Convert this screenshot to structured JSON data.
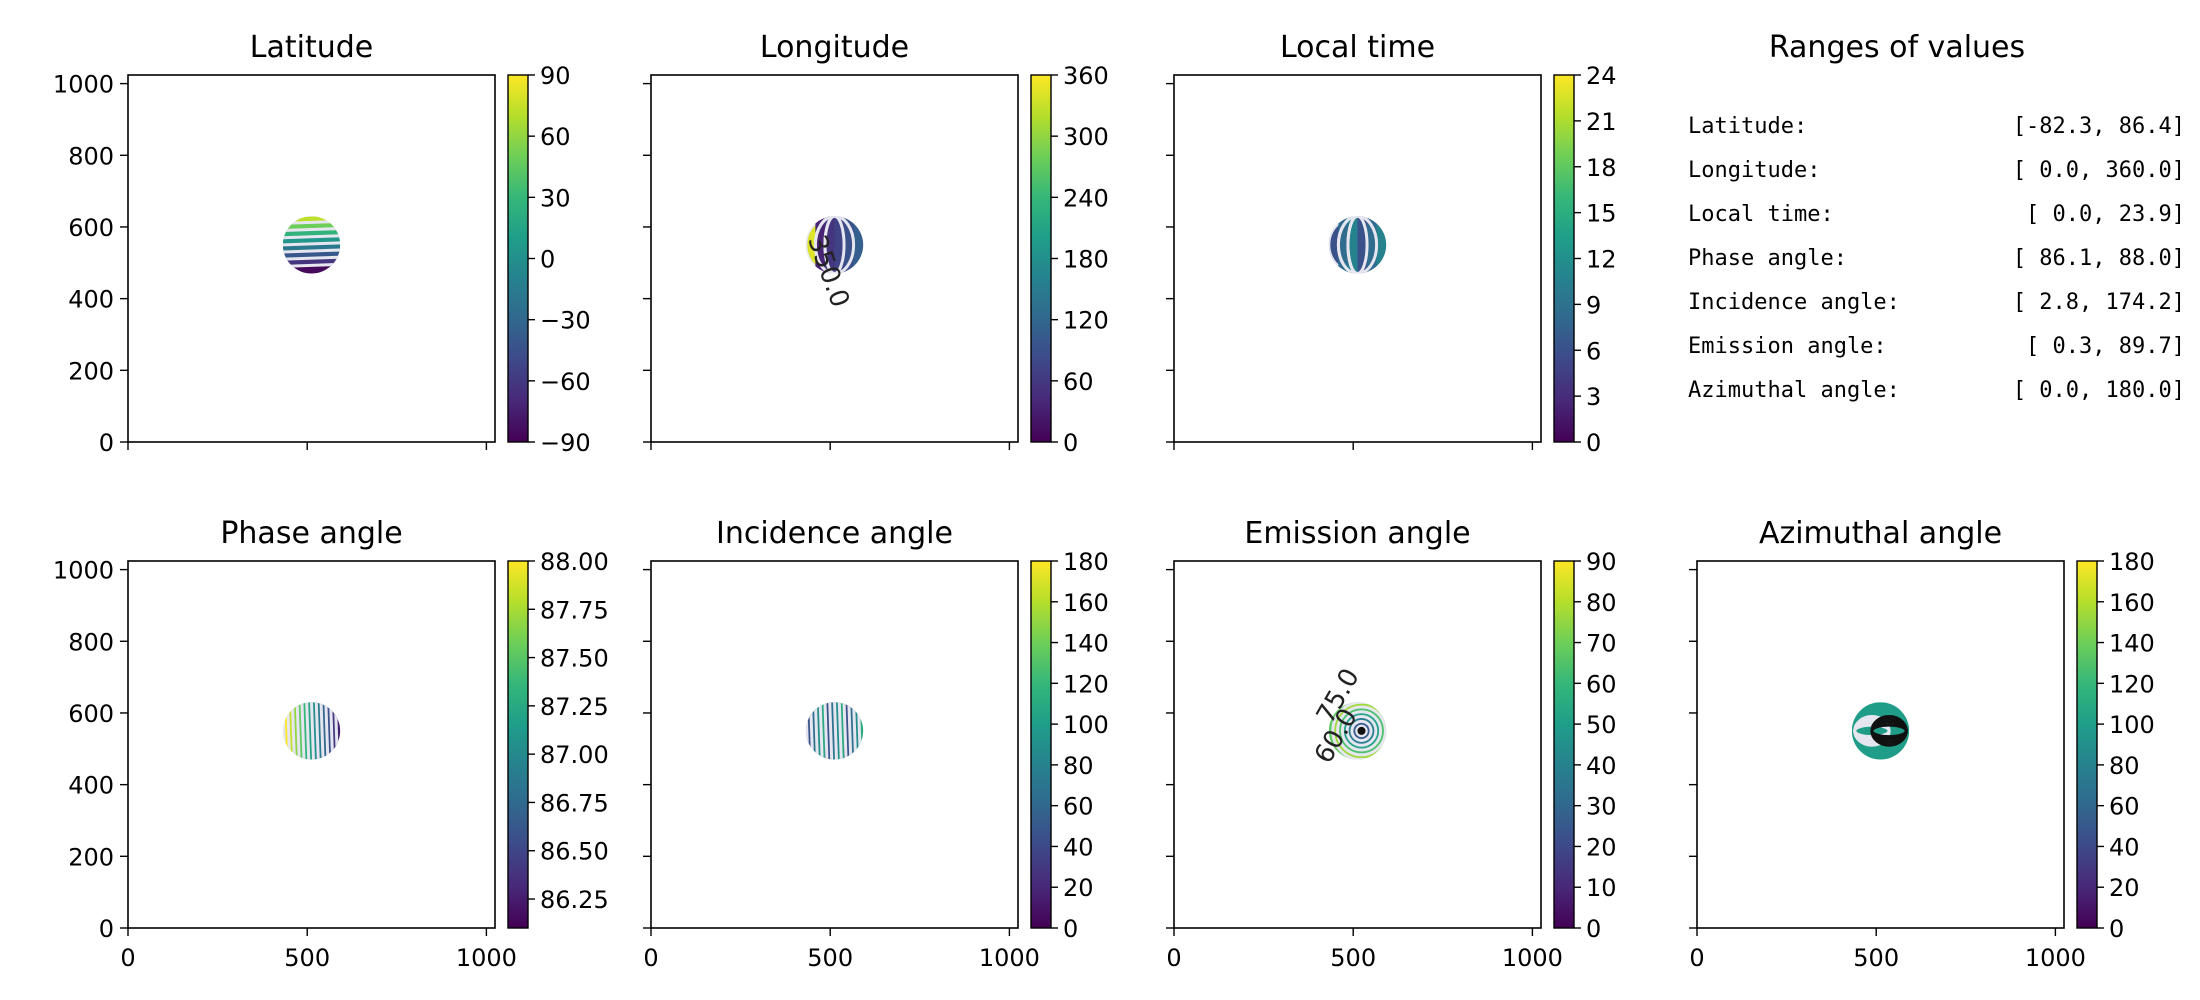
{
  "chart_data": [
    {
      "type": "heatmap",
      "title": "Latitude",
      "xlim": [
        0,
        1024
      ],
      "ylim": [
        0,
        1024
      ],
      "xticks": [
        "0",
        "500",
        "1000"
      ],
      "yticks": [
        "0",
        "200",
        "400",
        "600",
        "800",
        "1000"
      ],
      "disk": {
        "center": [
          512,
          550
        ],
        "radius": 80
      },
      "pattern": {
        "kind": "bands",
        "band_count": 8
      },
      "colorbar": {
        "min": -90,
        "max": 90,
        "ticks": [
          "90",
          "60",
          "30",
          "0",
          "−30",
          "−60",
          "−90"
        ]
      },
      "contour_labels": []
    },
    {
      "type": "heatmap",
      "title": "Longitude",
      "xlim": [
        0,
        1024
      ],
      "ylim": [
        0,
        1024
      ],
      "xticks": [
        "0",
        "500",
        "1000"
      ],
      "yticks": [
        "0",
        "200",
        "400",
        "600",
        "800",
        "1000"
      ],
      "disk": {
        "center": [
          512,
          550
        ],
        "radius": 80
      },
      "pattern": {
        "kind": "meridians"
      },
      "colorbar": {
        "min": 0,
        "max": 360,
        "ticks": [
          "360",
          "300",
          "240",
          "180",
          "120",
          "60",
          "0"
        ]
      },
      "contour_labels": [
        "350.0"
      ]
    },
    {
      "type": "heatmap",
      "title": "Local time",
      "xlim": [
        0,
        1024
      ],
      "ylim": [
        0,
        1024
      ],
      "xticks": [
        "0",
        "500",
        "1000"
      ],
      "yticks": [
        "0",
        "200",
        "400",
        "600",
        "800",
        "1000"
      ],
      "disk": {
        "center": [
          512,
          550
        ],
        "radius": 80
      },
      "pattern": {
        "kind": "meridians"
      },
      "colorbar": {
        "min": 0,
        "max": 24,
        "ticks": [
          "24",
          "21",
          "18",
          "15",
          "12",
          "9",
          "6",
          "3",
          "0"
        ]
      },
      "contour_labels": []
    },
    {
      "type": "table",
      "title": "Ranges of values",
      "rows": [
        {
          "label": "Latitude:",
          "range": "[-82.3,  86.4]"
        },
        {
          "label": "Longitude:",
          "range": "[  0.0, 360.0]"
        },
        {
          "label": "Local time:",
          "range": "[  0.0,  23.9]"
        },
        {
          "label": "Phase angle:",
          "range": "[ 86.1,  88.0]"
        },
        {
          "label": "Incidence angle:",
          "range": "[  2.8, 174.2]"
        },
        {
          "label": "Emission angle:",
          "range": "[  0.3,  89.7]"
        },
        {
          "label": "Azimuthal angle:",
          "range": "[  0.0, 180.0]"
        }
      ]
    },
    {
      "type": "heatmap",
      "title": "Phase angle",
      "xlim": [
        0,
        1024
      ],
      "ylim": [
        0,
        1024
      ],
      "xticks": [
        "0",
        "500",
        "1000"
      ],
      "yticks": [
        "0",
        "200",
        "400",
        "600",
        "800",
        "1000"
      ],
      "disk": {
        "center": [
          512,
          550
        ],
        "radius": 80
      },
      "pattern": {
        "kind": "vstripes"
      },
      "colorbar": {
        "min": 86.1,
        "max": 88.0,
        "ticks": [
          "88.00",
          "87.75",
          "87.50",
          "87.25",
          "87.00",
          "86.75",
          "86.50",
          "86.25"
        ],
        "tick_values": [
          88.0,
          87.75,
          87.5,
          87.25,
          87.0,
          86.75,
          86.5,
          86.25
        ]
      },
      "contour_labels": []
    },
    {
      "type": "heatmap",
      "title": "Incidence angle",
      "xlim": [
        0,
        1024
      ],
      "ylim": [
        0,
        1024
      ],
      "xticks": [
        "0",
        "500",
        "1000"
      ],
      "yticks": [
        "0",
        "200",
        "400",
        "600",
        "800",
        "1000"
      ],
      "disk": {
        "center": [
          512,
          550
        ],
        "radius": 80
      },
      "pattern": {
        "kind": "vstripes_rev"
      },
      "colorbar": {
        "min": 0,
        "max": 180,
        "ticks": [
          "180",
          "160",
          "140",
          "120",
          "100",
          "80",
          "60",
          "40",
          "20",
          "0"
        ]
      },
      "contour_labels": []
    },
    {
      "type": "heatmap",
      "title": "Emission angle",
      "xlim": [
        0,
        1024
      ],
      "ylim": [
        0,
        1024
      ],
      "xticks": [
        "0",
        "500",
        "1000"
      ],
      "yticks": [
        "0",
        "200",
        "400",
        "600",
        "800",
        "1000"
      ],
      "disk": {
        "center": [
          512,
          550
        ],
        "radius": 80
      },
      "pattern": {
        "kind": "rings"
      },
      "colorbar": {
        "min": 0,
        "max": 90,
        "ticks": [
          "90",
          "80",
          "70",
          "60",
          "50",
          "40",
          "30",
          "20",
          "10",
          "0"
        ]
      },
      "contour_labels": [
        "75.0",
        "60.0"
      ]
    },
    {
      "type": "heatmap",
      "title": "Azimuthal angle",
      "xlim": [
        0,
        1024
      ],
      "ylim": [
        0,
        1024
      ],
      "xticks": [
        "0",
        "500",
        "1000"
      ],
      "yticks": [
        "0",
        "200",
        "400",
        "600",
        "800",
        "1000"
      ],
      "disk": {
        "center": [
          512,
          550
        ],
        "radius": 80
      },
      "pattern": {
        "kind": "fan"
      },
      "colorbar": {
        "min": 0,
        "max": 180,
        "ticks": [
          "180",
          "160",
          "140",
          "120",
          "100",
          "80",
          "60",
          "40",
          "20",
          "0"
        ]
      },
      "contour_labels": []
    }
  ],
  "colors": {
    "viridis": [
      "#440154",
      "#482878",
      "#3e4989",
      "#31688e",
      "#26828e",
      "#1f9e89",
      "#35b779",
      "#6ece58",
      "#b5de2b",
      "#fde725"
    ],
    "contour_light": "#e6e6f0",
    "contour_dark": "#111111"
  }
}
